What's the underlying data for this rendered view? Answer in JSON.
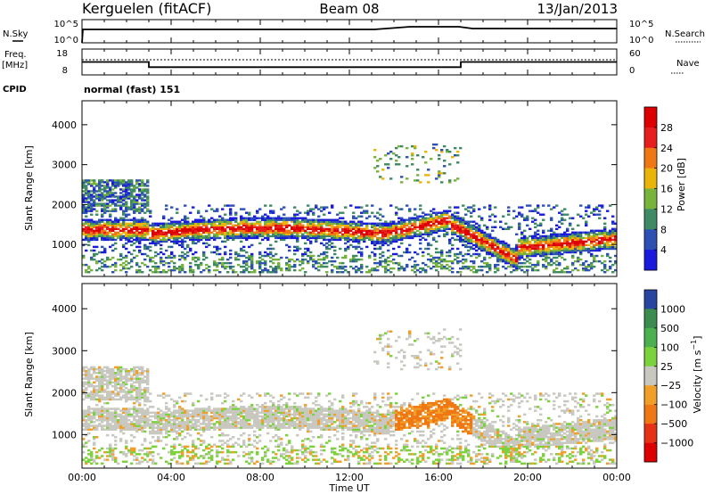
{
  "header": {
    "station": "Kerguelen (fitACF)",
    "beam": "Beam 08",
    "date": "13/Jan/2013"
  },
  "top_panels": {
    "nsky_label": "N.Sky",
    "nsky_ticks": [
      "10^5",
      "10^0"
    ],
    "nsearch_label": "N.Search",
    "nsearch_ticks": [
      "10^5",
      "10^0"
    ],
    "freq_label": "Freq.",
    "freq_unit": "[MHz]",
    "freq_ticks": [
      "18",
      "8"
    ],
    "nave_label": "Nave",
    "nave_ticks": [
      "60",
      "0"
    ],
    "cpid_label": "CPID",
    "cpid_value": "normal (fast) 151",
    "freq_series": {
      "hours": [
        0,
        3,
        3,
        17,
        17,
        24
      ],
      "values": [
        13,
        13,
        11,
        11,
        13,
        13
      ]
    }
  },
  "chart_data": [
    {
      "type": "heatmap",
      "name": "power",
      "ylabel": "Slant Range [km]",
      "yticks": [
        1000,
        2000,
        3000,
        4000
      ],
      "ylim": [
        200,
        4600
      ],
      "xlim": [
        0,
        24
      ],
      "colorbar_label": "Power [dB]",
      "colorbar_ticks": [
        "4",
        "8",
        "12",
        "16",
        "20",
        "24",
        "28"
      ],
      "colorbar_range": [
        0,
        32
      ],
      "colors": [
        "#1a1adc",
        "#2c50b4",
        "#3e8a64",
        "#78b43c",
        "#ebb40a",
        "#f07814",
        "#e61e1e",
        "#dc0000"
      ]
    },
    {
      "type": "heatmap",
      "name": "velocity",
      "ylabel": "Slant Range [km]",
      "yticks": [
        1000,
        2000,
        3000,
        4000
      ],
      "ylim": [
        200,
        4600
      ],
      "xlim": [
        0,
        24
      ],
      "colorbar_label": "Velocity [m s^-1]",
      "colorbar_ticks": [
        "1000",
        "500",
        "100",
        "25",
        "−25",
        "−100",
        "−500",
        "−1000"
      ],
      "colors": [
        "#2846a0",
        "#3c8c50",
        "#4caf50",
        "#7cd23c",
        "#c8c8c0",
        "#f0a028",
        "#f07814",
        "#e63214",
        "#dc0000"
      ]
    }
  ],
  "x_axis": {
    "ticks": [
      "00:00",
      "04:00",
      "08:00",
      "12:00",
      "16:00",
      "20:00",
      "00:00"
    ],
    "label": "Time UT"
  }
}
